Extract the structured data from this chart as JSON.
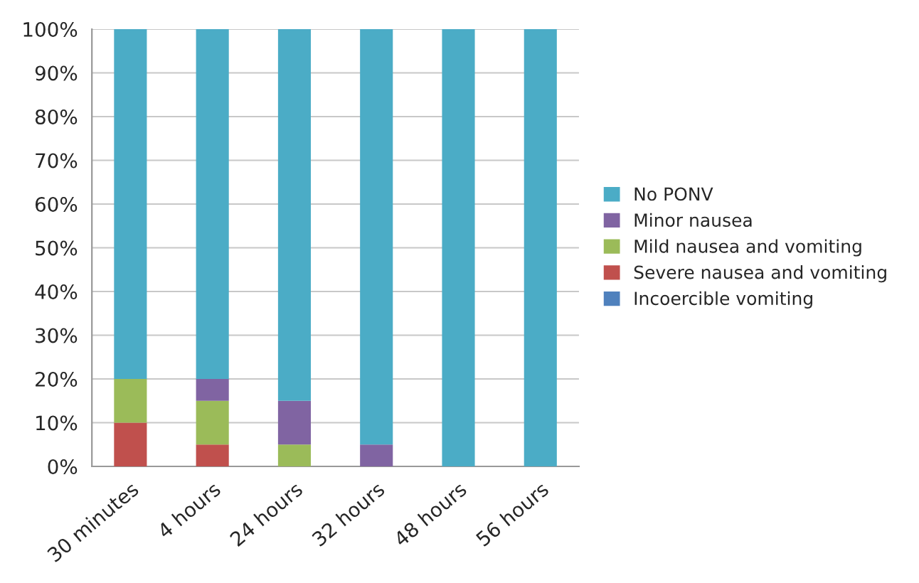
{
  "chart_data": {
    "type": "bar",
    "stacked": true,
    "categories": [
      "30 minutes",
      "4 hours",
      "24 hours",
      "32 hours",
      "48 hours",
      "56 hours"
    ],
    "series": [
      {
        "name": "Incoercible vomiting",
        "color": "#4f81bd",
        "values": [
          0,
          0,
          0,
          0,
          0,
          0
        ]
      },
      {
        "name": "Severe nausea and vomiting",
        "color": "#c0504d",
        "values": [
          10,
          5,
          0,
          0,
          0,
          0
        ]
      },
      {
        "name": "Mild nausea and vomiting",
        "color": "#9bbb59",
        "values": [
          10,
          10,
          5,
          0,
          0,
          0
        ]
      },
      {
        "name": "Minor nausea",
        "color": "#8064a2",
        "values": [
          0,
          5,
          10,
          5,
          0,
          0
        ]
      },
      {
        "name": "No PONV",
        "color": "#4bacc6",
        "values": [
          80,
          80,
          85,
          95,
          100,
          100
        ]
      }
    ],
    "ylim": [
      0,
      100
    ],
    "yticks": [
      {
        "value": 0,
        "label": "0%"
      },
      {
        "value": 10,
        "label": "10%"
      },
      {
        "value": 20,
        "label": "20%"
      },
      {
        "value": 30,
        "label": "30%"
      },
      {
        "value": 40,
        "label": "40%"
      },
      {
        "value": 50,
        "label": "50%"
      },
      {
        "value": 60,
        "label": "60%"
      },
      {
        "value": 70,
        "label": "70%"
      },
      {
        "value": 80,
        "label": "80%"
      },
      {
        "value": 90,
        "label": "90%"
      },
      {
        "value": 100,
        "label": "100%"
      }
    ],
    "grid": "y",
    "legend": "right"
  }
}
